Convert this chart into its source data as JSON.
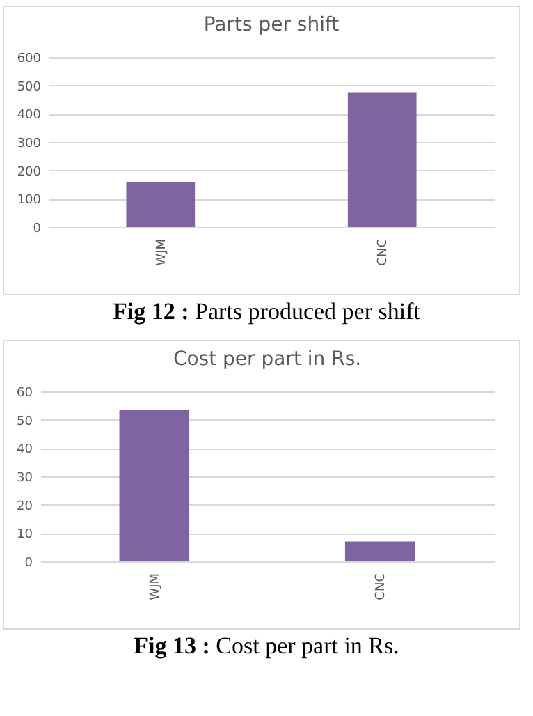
{
  "chart_data": [
    {
      "type": "bar",
      "title": "Parts per shift",
      "categories": [
        "WJM",
        "CNC"
      ],
      "values": [
        160,
        476
      ],
      "color": "#8064a2",
      "ylim": [
        0,
        600
      ],
      "yticks": [
        0,
        100,
        200,
        300,
        400,
        500,
        600
      ],
      "grid": "y",
      "annotations": [
        "Fig 12 : Parts produced per shift"
      ]
    },
    {
      "type": "bar",
      "title": "Cost per part in Rs.",
      "categories": [
        "WJM",
        "CNC"
      ],
      "values": [
        53.5,
        7
      ],
      "color": "#8064a2",
      "ylim": [
        0,
        60
      ],
      "yticks": [
        0,
        10,
        20,
        30,
        40,
        50,
        60
      ],
      "grid": "y",
      "annotations": [
        "Fig 13 : Cost per part in Rs."
      ]
    }
  ]
}
